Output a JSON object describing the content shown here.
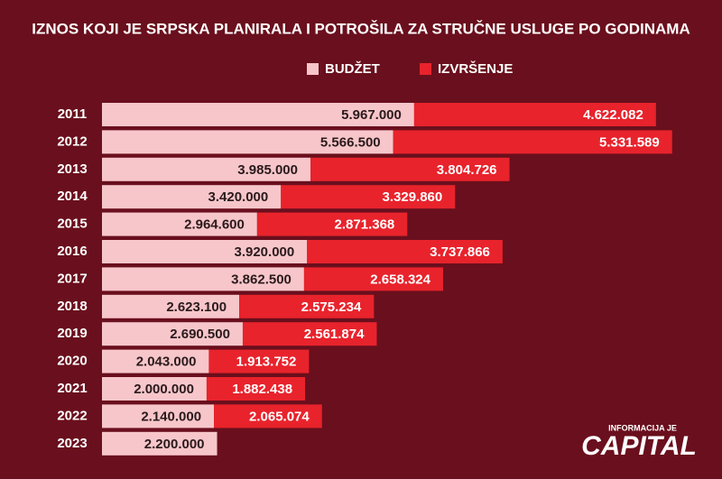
{
  "chart_data": {
    "type": "stacked-bar-horizontal",
    "title": "IZNOS KOJI JE SRPSKA PLANIRALA I POTROŠILA ZA STRUČNE USLUGE PO GODINAMA",
    "categories": [
      "2011",
      "2012",
      "2013",
      "2014",
      "2015",
      "2016",
      "2017",
      "2018",
      "2019",
      "2020",
      "2021",
      "2022",
      "2023"
    ],
    "series": [
      {
        "name": "BUDŽET",
        "color": "#f7c6ca",
        "values": [
          5967000,
          5566500,
          3985000,
          3420000,
          2964600,
          3920000,
          3862500,
          2623100,
          2690500,
          2043000,
          2000000,
          2140000,
          2200000
        ],
        "value_labels": [
          "5.967.000",
          "5.566.500",
          "3.985.000",
          "3.420.000",
          "2.964.600",
          "3.920.000",
          "3.862.500",
          "2.623.100",
          "2.690.500",
          "2.043.000",
          "2.000.000",
          "2.140.000",
          "2.200.000"
        ]
      },
      {
        "name": "IZVRŠENJE",
        "color": "#e8232c",
        "values": [
          4622082,
          5331589,
          3804726,
          3329860,
          2871368,
          3737866,
          2658324,
          2575234,
          2561874,
          1913752,
          1882438,
          2065074,
          null
        ],
        "value_labels": [
          "4.622.082",
          "5.331.589",
          "3.804.726",
          "3.329.860",
          "2.871.368",
          "3.737.866",
          "2.658.324",
          "2.575.234",
          "2.561.874",
          "1.913.752",
          "1.882.438",
          "2.065.074",
          null
        ]
      }
    ],
    "xlim": [
      0,
      11800000
    ],
    "legend": "top"
  },
  "logo": {
    "top": "INFORMACIJA JE",
    "main": "CAPITAL"
  }
}
